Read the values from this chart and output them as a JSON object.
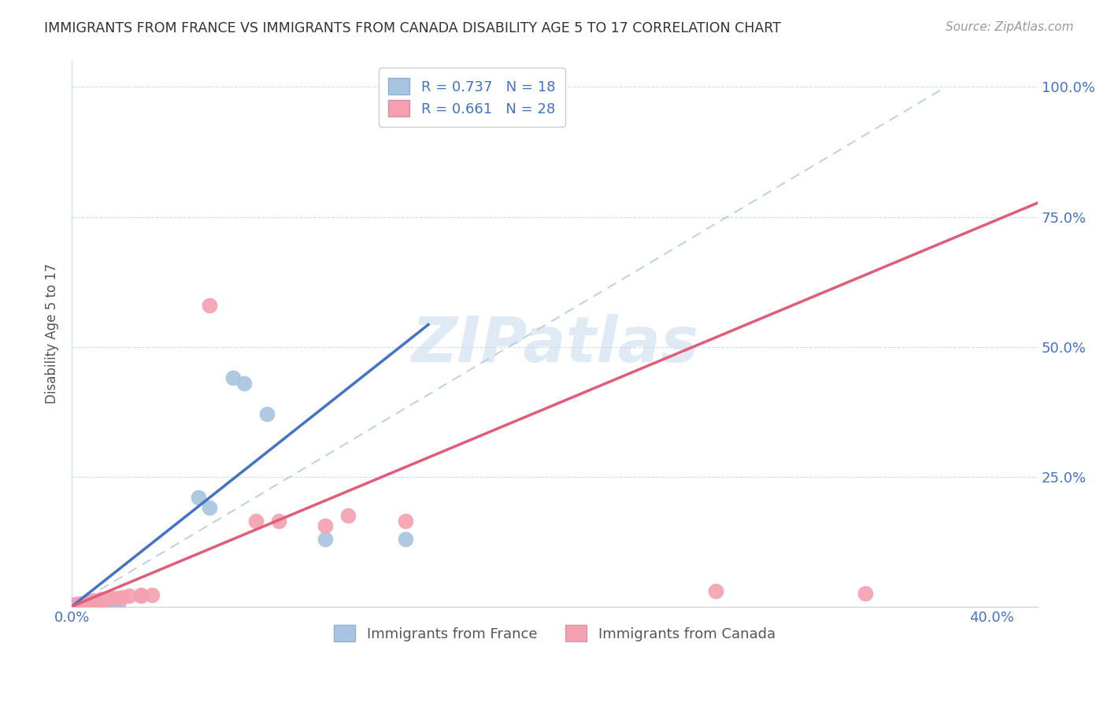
{
  "title": "IMMIGRANTS FROM FRANCE VS IMMIGRANTS FROM CANADA DISABILITY AGE 5 TO 17 CORRELATION CHART",
  "source": "Source: ZipAtlas.com",
  "ylabel": "Disability Age 5 to 17",
  "legend_france_r": "R = 0.737",
  "legend_france_n": "N = 18",
  "legend_canada_r": "R = 0.661",
  "legend_canada_n": "N = 28",
  "france_color": "#a8c4e0",
  "canada_color": "#f4a0b0",
  "france_line_color": "#4472c4",
  "canada_line_color": "#e05c78",
  "diagonal_color": "#b8cfe0",
  "axis_label_color": "#4472c4",
  "france_points": [
    [
      0.001,
      0.002
    ],
    [
      0.002,
      0.003
    ],
    [
      0.003,
      0.004
    ],
    [
      0.004,
      0.003
    ],
    [
      0.005,
      0.005
    ],
    [
      0.006,
      0.006
    ],
    [
      0.007,
      0.006
    ],
    [
      0.008,
      0.004
    ],
    [
      0.01,
      0.006
    ],
    [
      0.015,
      0.003
    ],
    [
      0.02,
      0.003
    ],
    [
      0.055,
      0.21
    ],
    [
      0.06,
      0.19
    ],
    [
      0.07,
      0.44
    ],
    [
      0.075,
      0.43
    ],
    [
      0.085,
      0.37
    ],
    [
      0.11,
      0.13
    ],
    [
      0.145,
      0.13
    ]
  ],
  "canada_points": [
    [
      0.001,
      0.004
    ],
    [
      0.002,
      0.004
    ],
    [
      0.003,
      0.005
    ],
    [
      0.004,
      0.005
    ],
    [
      0.005,
      0.006
    ],
    [
      0.006,
      0.008
    ],
    [
      0.007,
      0.008
    ],
    [
      0.008,
      0.01
    ],
    [
      0.009,
      0.01
    ],
    [
      0.01,
      0.012
    ],
    [
      0.012,
      0.012
    ],
    [
      0.013,
      0.014
    ],
    [
      0.015,
      0.015
    ],
    [
      0.018,
      0.016
    ],
    [
      0.02,
      0.016
    ],
    [
      0.022,
      0.018
    ],
    [
      0.025,
      0.02
    ],
    [
      0.03,
      0.022
    ],
    [
      0.03,
      0.02
    ],
    [
      0.035,
      0.022
    ],
    [
      0.06,
      0.58
    ],
    [
      0.08,
      0.165
    ],
    [
      0.09,
      0.165
    ],
    [
      0.11,
      0.155
    ],
    [
      0.12,
      0.175
    ],
    [
      0.145,
      0.165
    ],
    [
      0.28,
      0.03
    ],
    [
      0.345,
      0.025
    ]
  ],
  "xlim": [
    0.0,
    0.42
  ],
  "ylim": [
    0.0,
    1.05
  ],
  "france_line": [
    [
      0.0,
      -0.02
    ],
    [
      0.175,
      0.68
    ]
  ],
  "canada_line": [
    [
      0.0,
      -0.02
    ],
    [
      0.42,
      0.77
    ]
  ],
  "diagonal_line": [
    [
      0.0,
      0.0
    ],
    [
      0.38,
      1.0
    ]
  ],
  "x_ticks": [
    0.0,
    0.08,
    0.16,
    0.24,
    0.32,
    0.4
  ],
  "x_tick_labels": [
    "0.0%",
    "",
    "",
    "",
    "",
    "40.0%"
  ],
  "y_ticks": [
    0.0,
    0.25,
    0.5,
    0.75,
    1.0
  ],
  "right_y_tick_labels": [
    "",
    "25.0%",
    "50.0%",
    "75.0%",
    "100.0%"
  ],
  "watermark_text": "ZIPatlas",
  "background_color": "#ffffff"
}
